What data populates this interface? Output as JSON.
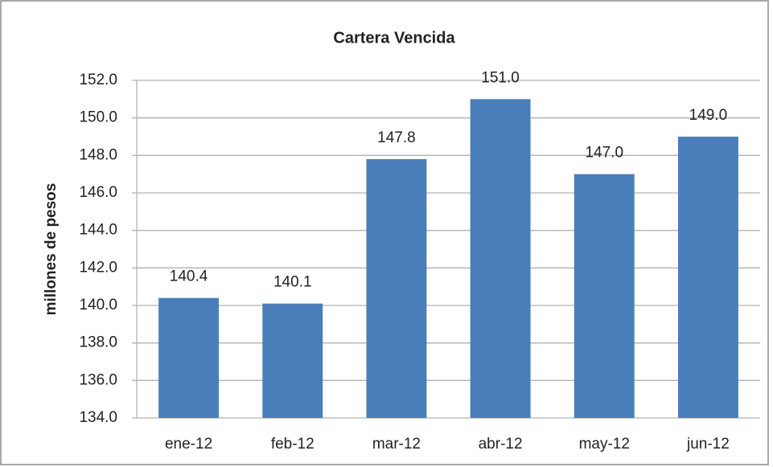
{
  "chart_data": {
    "type": "bar",
    "title": "Cartera Vencida",
    "y_label": "millones de pesos",
    "categories": [
      "ene-12",
      "feb-12",
      "mar-12",
      "abr-12",
      "may-12",
      "jun-12"
    ],
    "values": [
      140.4,
      140.1,
      147.8,
      151.0,
      147.0,
      149.0
    ],
    "value_labels": [
      "140.4",
      "140.1",
      "147.8",
      "151.0",
      "147.0",
      "149.0"
    ],
    "color": "#4a7ebb",
    "ylim": [
      134,
      152
    ],
    "yticks": [
      {
        "value": 134,
        "label": "134.0"
      },
      {
        "value": 136,
        "label": "136.0"
      },
      {
        "value": 138,
        "label": "138.0"
      },
      {
        "value": 140,
        "label": "140.0"
      },
      {
        "value": 142,
        "label": "142.0"
      },
      {
        "value": 144,
        "label": "144.0"
      },
      {
        "value": 146,
        "label": "146.0"
      },
      {
        "value": 148,
        "label": "148.0"
      },
      {
        "value": 150,
        "label": "150.0"
      },
      {
        "value": 152,
        "label": "152.0"
      }
    ],
    "grid": true
  }
}
